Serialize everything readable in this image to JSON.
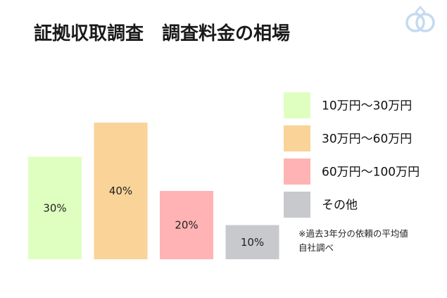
{
  "title": "証拠収取調査　調査料金の相場",
  "logo_icon": "interlocking-rings-logo",
  "chart_data": {
    "type": "bar",
    "categories": [
      "10万円～30万円",
      "30万円～60万円",
      "60万円～100万円",
      "その他"
    ],
    "values": [
      30,
      40,
      20,
      10
    ],
    "data_labels": [
      "30%",
      "40%",
      "20%",
      "10%"
    ],
    "colors": [
      "#dfffc0",
      "#f9d398",
      "#ffb3b4",
      "#c8c9cc"
    ],
    "ylim": [
      0,
      50
    ],
    "legend": {
      "placement": "right",
      "entries": [
        "10万円～30万円",
        "30万円～60万円",
        "60万円～100万円",
        "その他"
      ]
    },
    "grid": false,
    "xlabel": "",
    "ylabel": ""
  },
  "note": {
    "line1": "※過去3年分の依頼の平均値",
    "line2": "自社調べ"
  }
}
